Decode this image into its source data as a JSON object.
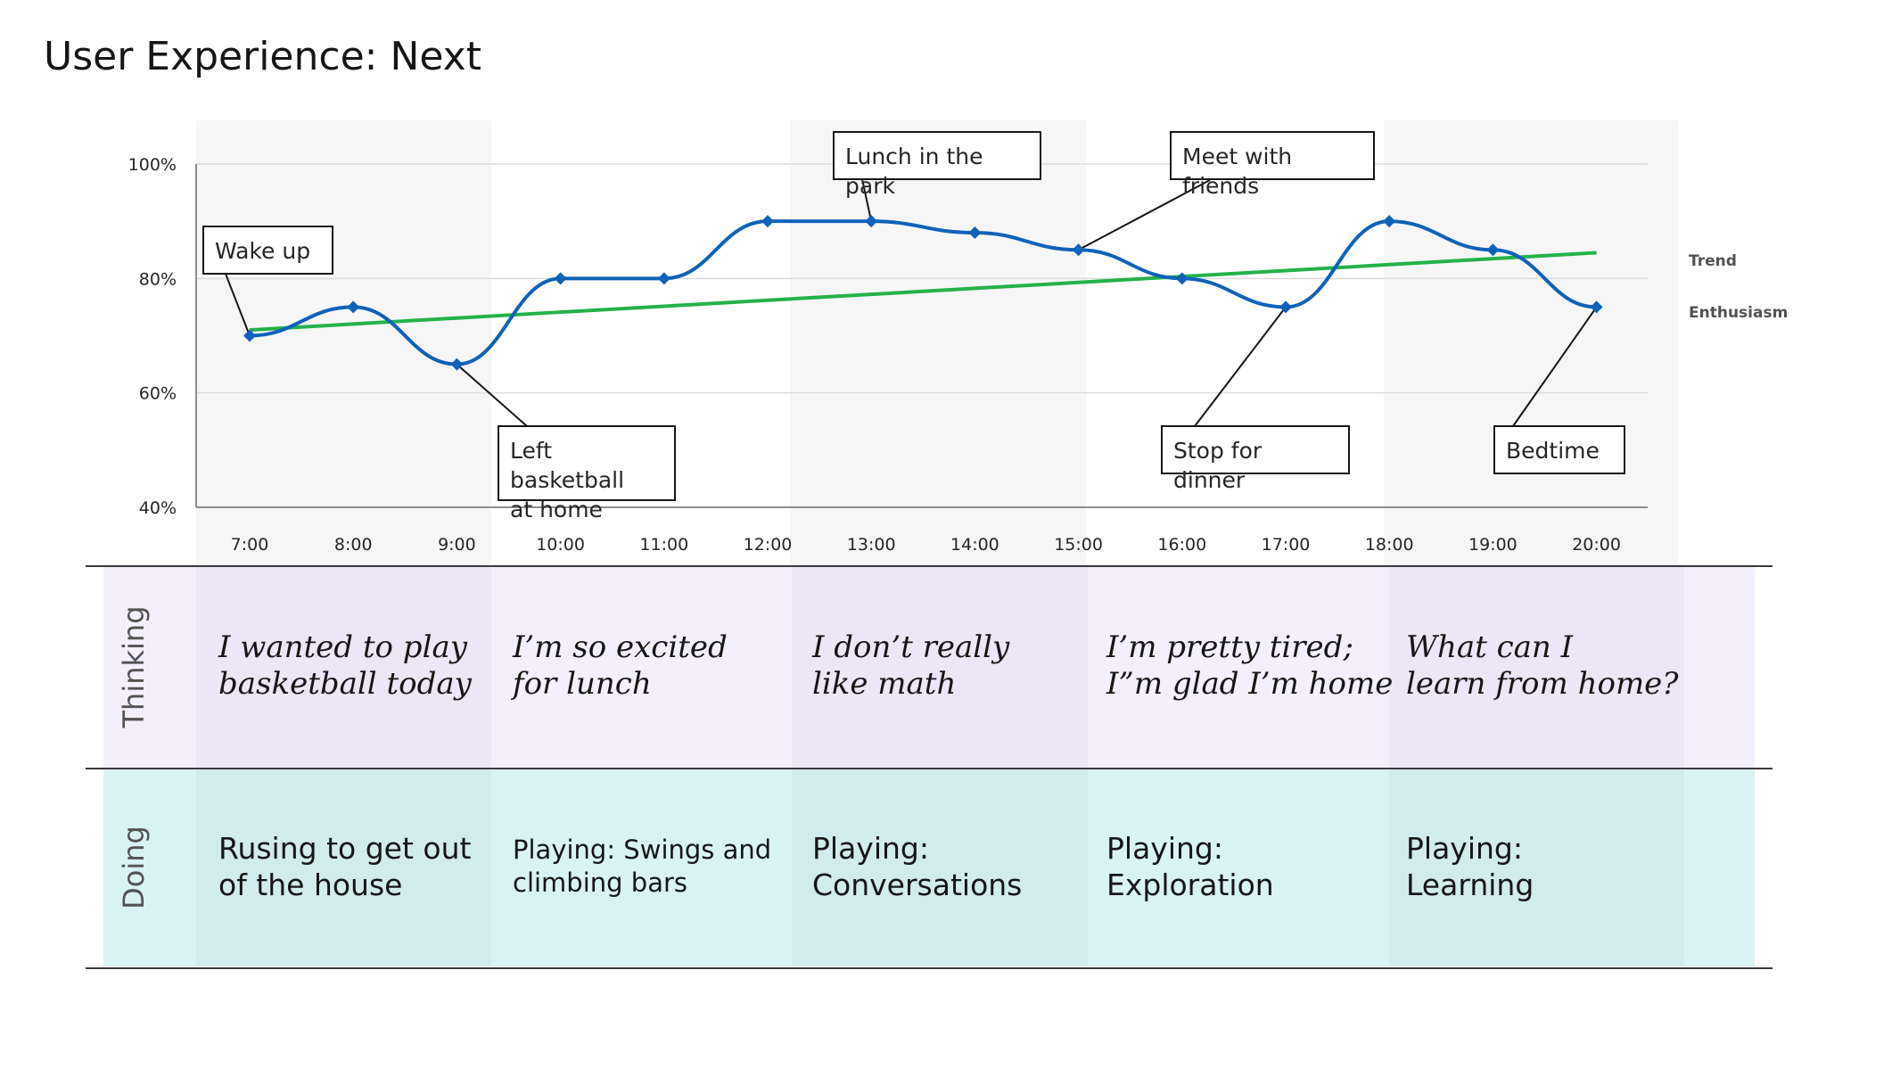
{
  "title": "User Experience: Next",
  "colors": {
    "enthusiasm": "#0f62b8",
    "trend": "#24b249",
    "thinking_band": "#f4effd",
    "doing_band": "#d9f3f3"
  },
  "legend": {
    "trend": "Trend",
    "enthusiasm": "Enthusiasm"
  },
  "chart_data": {
    "type": "line",
    "x": [
      "7:00",
      "8:00",
      "9:00",
      "10:00",
      "11:00",
      "12:00",
      "13:00",
      "14:00",
      "15:00",
      "16:00",
      "17:00",
      "18:00",
      "19:00",
      "20:00"
    ],
    "yticks": [
      "40%",
      "60%",
      "80%",
      "100%"
    ],
    "ylim": [
      40,
      100
    ],
    "grid": true,
    "legend_position": "right",
    "series": [
      {
        "name": "Enthusiasm",
        "values": [
          70,
          75,
          65,
          80,
          80,
          90,
          90,
          88,
          85,
          80,
          75,
          90,
          85,
          75
        ]
      },
      {
        "name": "Trend",
        "values": [
          71,
          72.04,
          73.08,
          74.12,
          75.15,
          76.19,
          77.23,
          78.27,
          79.31,
          80.35,
          81.38,
          82.42,
          83.46,
          84.5
        ]
      }
    ],
    "annotations": [
      {
        "text": "Wake up",
        "x": "7:00"
      },
      {
        "text": "Left basketball\nat home",
        "x": "9:00"
      },
      {
        "text": "Lunch in the park",
        "x": "13:00"
      },
      {
        "text": "Meet with friends",
        "x": "15:00"
      },
      {
        "text": "Stop for dinner",
        "x": "17:00"
      },
      {
        "text": "Bedtime",
        "x": "20:00"
      }
    ]
  },
  "rows": {
    "thinking": {
      "label": "Thinking",
      "cells": [
        "I wanted to play\nbasketball today",
        "I’m so excited\nfor lunch",
        "I don’t really\nlike math",
        "I’m pretty tired;\nI”m glad I’m home",
        "What can I\nlearn from home?"
      ]
    },
    "doing": {
      "label": "Doing",
      "cells": [
        "Rusing to get out\nof the house",
        "Playing: Swings and\nclimbing bars",
        "Playing:\nConversations",
        "Playing:\nExploration",
        "Playing:\nLearning"
      ]
    }
  }
}
